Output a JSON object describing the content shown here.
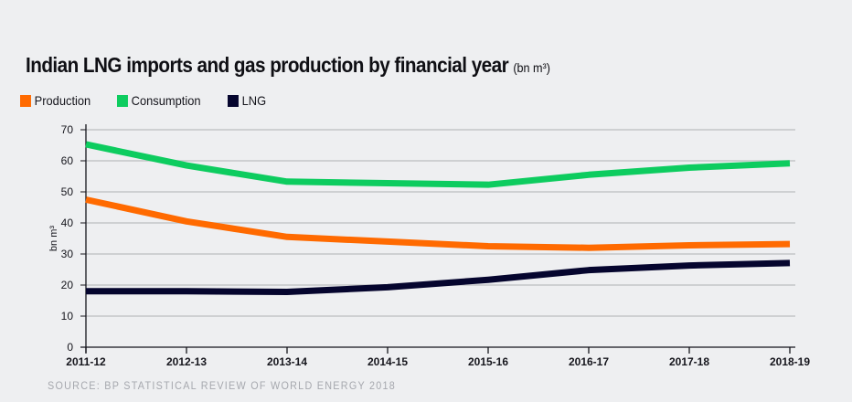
{
  "chart_data": {
    "type": "line",
    "title": "Indian LNG imports and gas production by financial year",
    "title_unit": "(bn m³)",
    "xlabel": "",
    "ylabel": "bn m³",
    "ylim": [
      0,
      70
    ],
    "yticks": [
      0,
      10,
      20,
      30,
      40,
      50,
      60,
      70
    ],
    "grid": true,
    "legend_position": "top-left",
    "categories": [
      "2011-12",
      "2012-13",
      "2013-14",
      "2014-15",
      "2015-16",
      "2016-17",
      "2017-18",
      "2018-19"
    ],
    "series": [
      {
        "name": "Production",
        "color": "#ff6a00",
        "values": [
          47.5,
          40.5,
          35.5,
          34.0,
          32.5,
          32.0,
          32.8,
          33.2
        ]
      },
      {
        "name": "Consumption",
        "color": "#0dcc5f",
        "values": [
          65.3,
          58.5,
          53.3,
          52.8,
          52.3,
          55.5,
          57.8,
          59.2
        ]
      },
      {
        "name": "LNG",
        "color": "#05052e",
        "values": [
          18.0,
          18.0,
          17.8,
          19.3,
          21.7,
          24.8,
          26.3,
          27.1
        ]
      }
    ],
    "source": "SOURCE: BP STATISTICAL REVIEW OF WORLD ENERGY 2018"
  }
}
